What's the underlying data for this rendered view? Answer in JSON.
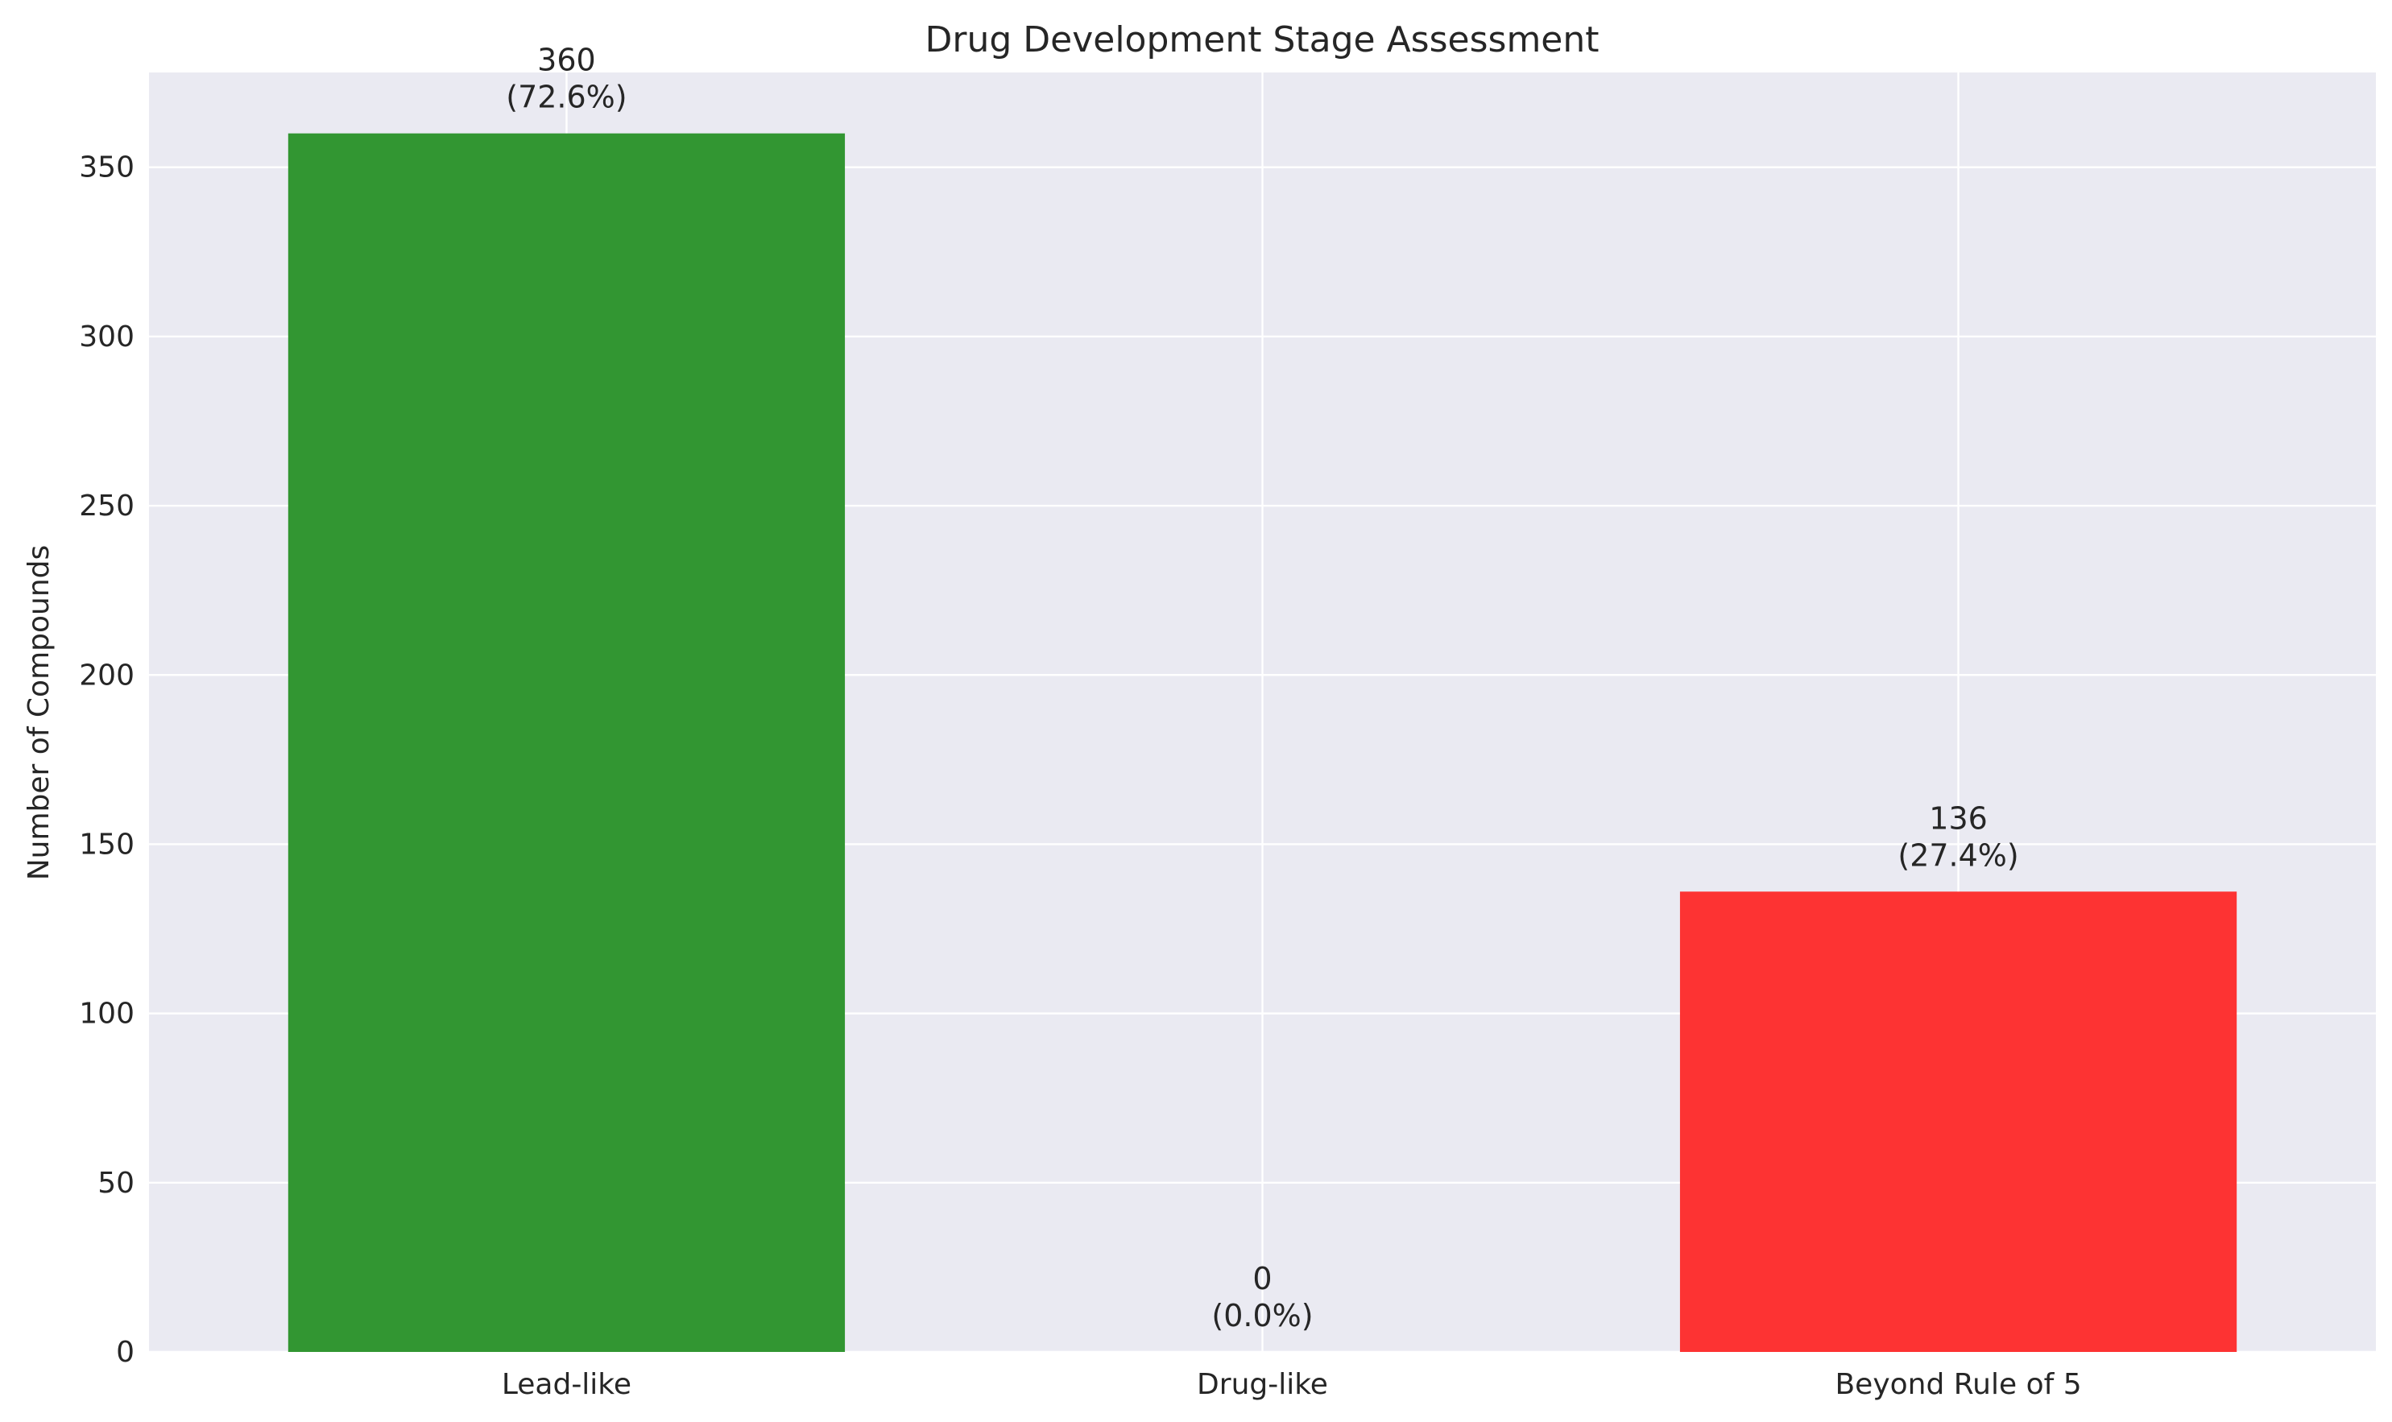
{
  "chart_data": {
    "type": "bar",
    "title": "Drug Development Stage Assessment",
    "xlabel": "",
    "ylabel": "Number of Compounds",
    "categories": [
      "Lead-like",
      "Drug-like",
      "Beyond Rule of 5"
    ],
    "values": [
      360,
      0,
      136
    ],
    "value_labels": [
      "360",
      "0",
      "136"
    ],
    "percent_labels": [
      "(72.6%)",
      "(0.0%)",
      "(27.4%)"
    ],
    "colors": [
      "#329632",
      "#2ca02c",
      "#fd3333"
    ],
    "ylim": [
      0,
      378
    ],
    "yticks": [
      0,
      50,
      100,
      150,
      200,
      250,
      300,
      350
    ],
    "grid": true,
    "background": "#eaeaf2"
  }
}
